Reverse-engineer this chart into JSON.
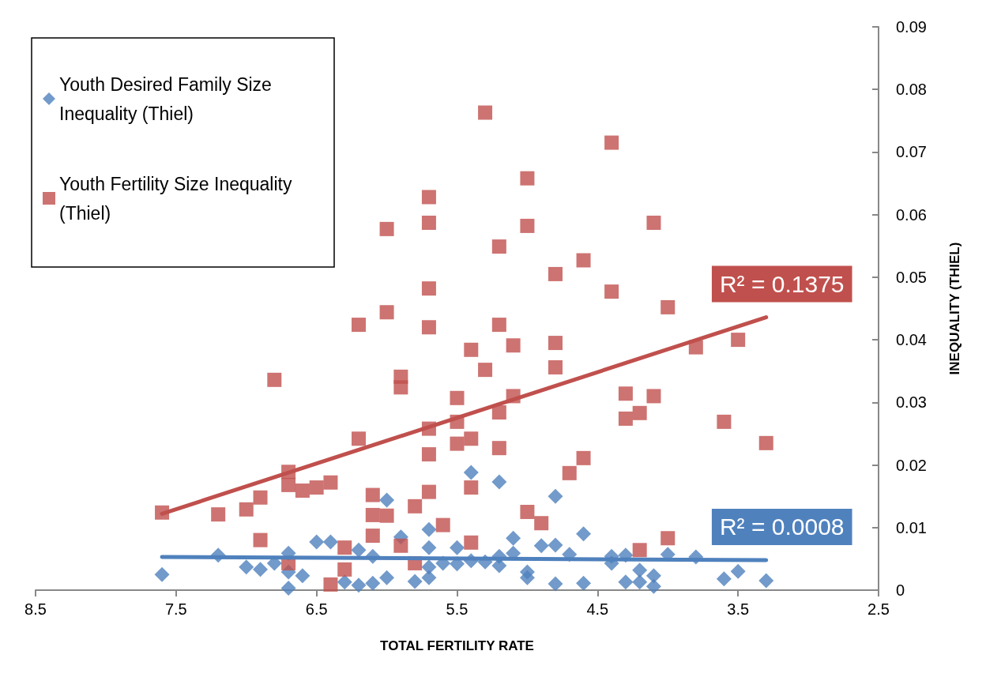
{
  "chart_data": {
    "type": "scatter",
    "xlabel": "TOTAL FERTILITY RATE",
    "ylabel": "INEQUALITY (THIEL)",
    "xlim": [
      8.5,
      2.5
    ],
    "xticks": [
      8.5,
      7.5,
      6.5,
      5.5,
      4.5,
      3.5,
      2.5
    ],
    "ylim": [
      0,
      0.09
    ],
    "yticks": [
      0,
      0.01,
      0.02,
      0.03,
      0.04,
      0.05,
      0.06,
      0.07,
      0.08,
      0.09
    ],
    "grid": false,
    "legend": "top left",
    "series": [
      {
        "name": "Youth Desired Family Size Inequality (Thiel)",
        "marker": "diamond",
        "color": "#4f81bd",
        "x": [
          7.6,
          7.2,
          7.0,
          6.9,
          6.8,
          6.7,
          6.7,
          6.7,
          6.6,
          6.5,
          6.4,
          6.3,
          6.2,
          6.2,
          6.1,
          6.1,
          6.0,
          6.0,
          5.9,
          5.8,
          5.7,
          5.7,
          5.7,
          5.7,
          5.6,
          5.5,
          5.5,
          5.4,
          5.4,
          5.3,
          5.2,
          5.2,
          5.2,
          5.1,
          5.1,
          5.0,
          5.0,
          4.9,
          4.8,
          4.8,
          4.8,
          4.7,
          4.6,
          4.6,
          4.4,
          4.4,
          4.3,
          4.3,
          4.2,
          4.2,
          4.1,
          4.1,
          4.0,
          3.8,
          3.6,
          3.5,
          3.3
        ],
        "values": [
          0.0025,
          0.0056,
          0.0037,
          0.0033,
          0.0043,
          0.0059,
          0.0029,
          0.0003,
          0.0023,
          0.0077,
          0.0077,
          0.0013,
          0.0064,
          0.0008,
          0.0054,
          0.0011,
          0.0144,
          0.002,
          0.0085,
          0.0014,
          0.0097,
          0.0068,
          0.0037,
          0.002,
          0.0043,
          0.0068,
          0.0042,
          0.0188,
          0.0047,
          0.0045,
          0.0173,
          0.0054,
          0.0039,
          0.0083,
          0.0059,
          0.0029,
          0.002,
          0.0071,
          0.015,
          0.0072,
          0.001,
          0.0057,
          0.009,
          0.0011,
          0.0054,
          0.0043,
          0.0056,
          0.0013,
          0.0032,
          0.0013,
          0.0023,
          0.0006,
          0.0057,
          0.0053,
          0.0018,
          0.003,
          0.0015
        ]
      },
      {
        "name": "Youth Fertility Size Inequality (Thiel)",
        "marker": "square",
        "color": "#c0504d",
        "x": [
          7.6,
          7.2,
          7.0,
          6.9,
          6.9,
          6.8,
          6.7,
          6.7,
          6.7,
          6.6,
          6.5,
          6.4,
          6.4,
          6.3,
          6.3,
          6.2,
          6.2,
          6.1,
          6.1,
          6.1,
          6.0,
          6.0,
          6.0,
          5.9,
          5.9,
          5.9,
          5.8,
          5.8,
          5.7,
          5.7,
          5.7,
          5.7,
          5.7,
          5.7,
          5.7,
          5.6,
          5.5,
          5.5,
          5.5,
          5.4,
          5.4,
          5.4,
          5.4,
          5.3,
          5.3,
          5.2,
          5.2,
          5.2,
          5.2,
          5.1,
          5.1,
          5.0,
          5.0,
          5.0,
          4.9,
          4.8,
          4.8,
          4.8,
          4.7,
          4.6,
          4.6,
          4.4,
          4.4,
          4.3,
          4.3,
          4.2,
          4.2,
          4.1,
          4.1,
          4.0,
          4.0,
          3.8,
          3.6,
          3.5,
          3.3
        ],
        "values": [
          0.0124,
          0.0121,
          0.0129,
          0.0148,
          0.008,
          0.0336,
          0.0189,
          0.0168,
          0.0043,
          0.0159,
          0.0164,
          0.0172,
          0.0009,
          0.0068,
          0.0033,
          0.0424,
          0.0242,
          0.0152,
          0.012,
          0.0087,
          0.0577,
          0.0444,
          0.0119,
          0.0341,
          0.0324,
          0.0071,
          0.0134,
          0.0043,
          0.0628,
          0.0587,
          0.0482,
          0.042,
          0.0258,
          0.0217,
          0.0157,
          0.0104,
          0.0307,
          0.0269,
          0.0234,
          0.0384,
          0.0242,
          0.0164,
          0.0076,
          0.0763,
          0.0352,
          0.0549,
          0.0424,
          0.0284,
          0.0227,
          0.0391,
          0.031,
          0.0658,
          0.0582,
          0.0125,
          0.0107,
          0.0505,
          0.0395,
          0.0356,
          0.0187,
          0.0527,
          0.0211,
          0.0715,
          0.0477,
          0.0314,
          0.0274,
          0.0283,
          0.0064,
          0.0587,
          0.031,
          0.0452,
          0.0083,
          0.0388,
          0.0269,
          0.04,
          0.0235
        ]
      },
      {
        "type": "line",
        "marker": "none",
        "line_style": "solid",
        "color": "#4f81bd",
        "x": [
          7.6,
          3.3
        ],
        "values": [
          0.0053,
          0.0048
        ]
      },
      {
        "type": "line",
        "marker": "none",
        "line_style": "solid",
        "color": "#c0504d",
        "x": [
          7.6,
          3.3
        ],
        "values": [
          0.0122,
          0.0436
        ]
      }
    ],
    "annotations": [
      "R² = 0.0008",
      "R² = 0.1375"
    ]
  }
}
